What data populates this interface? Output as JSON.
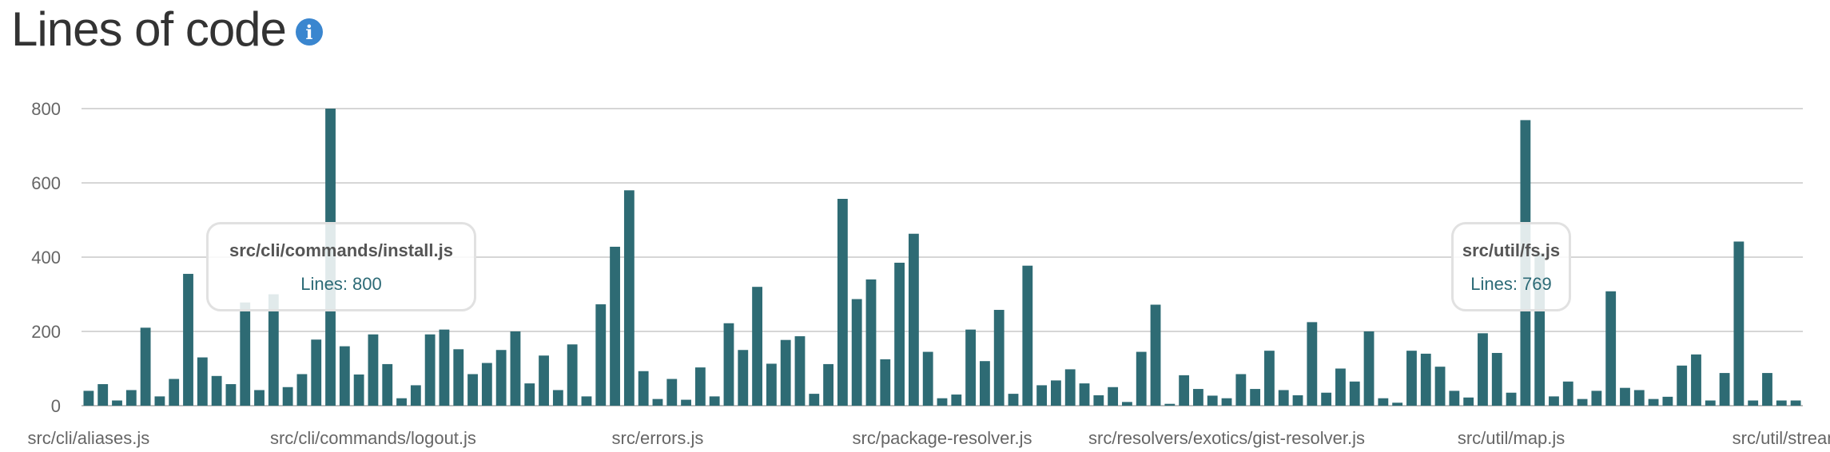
{
  "header": {
    "title": "Lines of code",
    "info_icon": "info-icon",
    "info_glyph": "i"
  },
  "colors": {
    "bar": "#2e6b74",
    "grid": "#d6d6d6",
    "axis_text": "#666666",
    "info": "#3a86cf"
  },
  "tooltips": [
    {
      "title": "src/cli/commands/install.js",
      "value_label": "Lines: 800"
    },
    {
      "title": "src/util/fs.js",
      "value_label": "Lines: 769"
    }
  ],
  "chart_data": {
    "type": "bar",
    "title": "",
    "xlabel": "",
    "ylabel": "",
    "ylim": [
      0,
      800
    ],
    "yticks": [
      0,
      200,
      400,
      600,
      800
    ],
    "grid": true,
    "x_tick_labels": [
      "src/cli/aliases.js",
      "src/cli/commands/logout.js",
      "src/errors.js",
      "src/package-resolver.js",
      "src/resolvers/exotics/gist-resolver.js",
      "src/util/map.js",
      "src/util/stream.js"
    ],
    "highlighted": [
      {
        "file": "src/cli/commands/install.js",
        "lines": 800
      },
      {
        "file": "src/util/fs.js",
        "lines": 769
      }
    ],
    "values": [
      40,
      58,
      14,
      42,
      210,
      25,
      72,
      355,
      130,
      80,
      58,
      278,
      42,
      300,
      50,
      85,
      178,
      800,
      160,
      84,
      192,
      112,
      20,
      55,
      192,
      205,
      152,
      85,
      115,
      150,
      200,
      60,
      135,
      42,
      165,
      25,
      273,
      428,
      580,
      93,
      18,
      72,
      16,
      103,
      25,
      222,
      150,
      320,
      113,
      177,
      187,
      32,
      112,
      557,
      287,
      340,
      125,
      385,
      463,
      145,
      20,
      30,
      205,
      120,
      258,
      32,
      377,
      55,
      68,
      98,
      60,
      28,
      50,
      10,
      145,
      272,
      5,
      82,
      45,
      27,
      20,
      85,
      45,
      148,
      42,
      28,
      225,
      35,
      100,
      65,
      200,
      20,
      8,
      148,
      140,
      105,
      40,
      22,
      195,
      142,
      35,
      769,
      410,
      25,
      65,
      18,
      40,
      308,
      48,
      42,
      18,
      24,
      108,
      138,
      14,
      88,
      442,
      14,
      88,
      14,
      14
    ]
  }
}
